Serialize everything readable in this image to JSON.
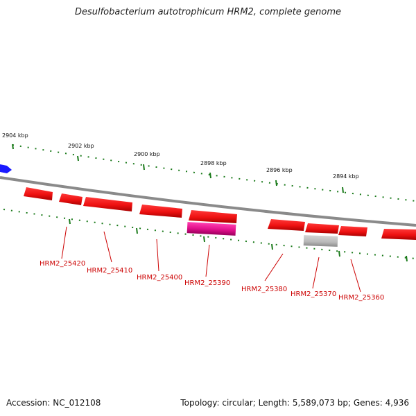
{
  "title": "Desulfobacterium autotrophicum HRM2, complete genome",
  "accession": "Accession: NC_012108",
  "summary": "Topology: circular; Length: 5,589,073 bp; Genes: 4,936",
  "scale_labels": [
    "2904 kbp",
    "2902 kbp",
    "2900 kbp",
    "2898 kbp",
    "2896 kbp",
    "2894 kbp"
  ],
  "gene_labels": [
    "HRM2_25420",
    "HRM2_25410",
    "HRM2_25400",
    "HRM2_25390",
    "HRM2_25380",
    "HRM2_25370",
    "HRM2_25360"
  ],
  "colors": {
    "forward_gene": "#ee1111",
    "highlight_gene": "#e0108a",
    "pseudo_gene": "#b8b8b8",
    "other_feature": "#1a1aff",
    "backbone": "#8a8a8a",
    "tick": "#1a7a1a",
    "label": "#cc0000"
  }
}
